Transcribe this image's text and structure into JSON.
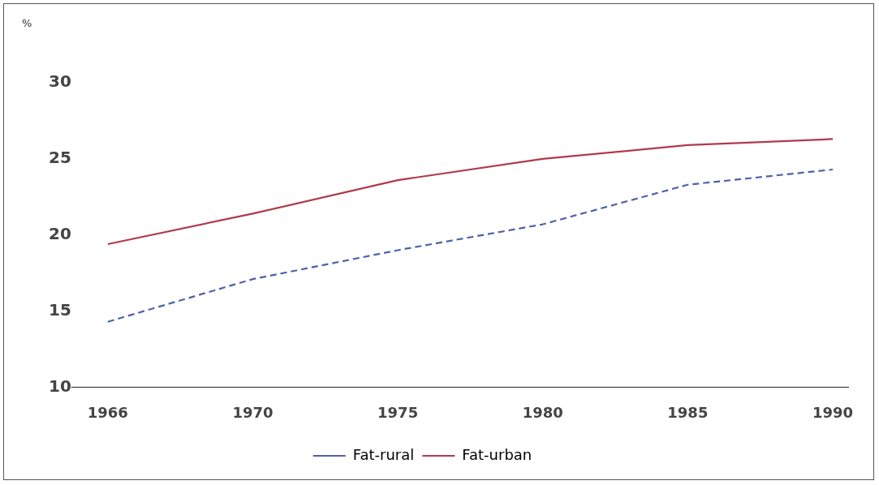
{
  "chart_data": {
    "type": "line",
    "ylabel": "%",
    "categories": [
      "1966",
      "1970",
      "1975",
      "1980",
      "1985",
      "1990"
    ],
    "series": [
      {
        "name": "Fat-rural",
        "color": "#4f62a8",
        "line_style": "dashed",
        "values": [
          14.3,
          17.1,
          19.0,
          20.7,
          23.3,
          24.3
        ]
      },
      {
        "name": "Fat-urban",
        "color": "#b03a4e",
        "line_style": "solid",
        "values": [
          19.4,
          21.4,
          23.6,
          25.0,
          25.9,
          26.3
        ]
      }
    ],
    "ylim": [
      10,
      30
    ],
    "yticks": [
      10,
      15,
      20,
      25,
      30
    ],
    "grid": false,
    "legend": "bottom",
    "marker": "none"
  }
}
